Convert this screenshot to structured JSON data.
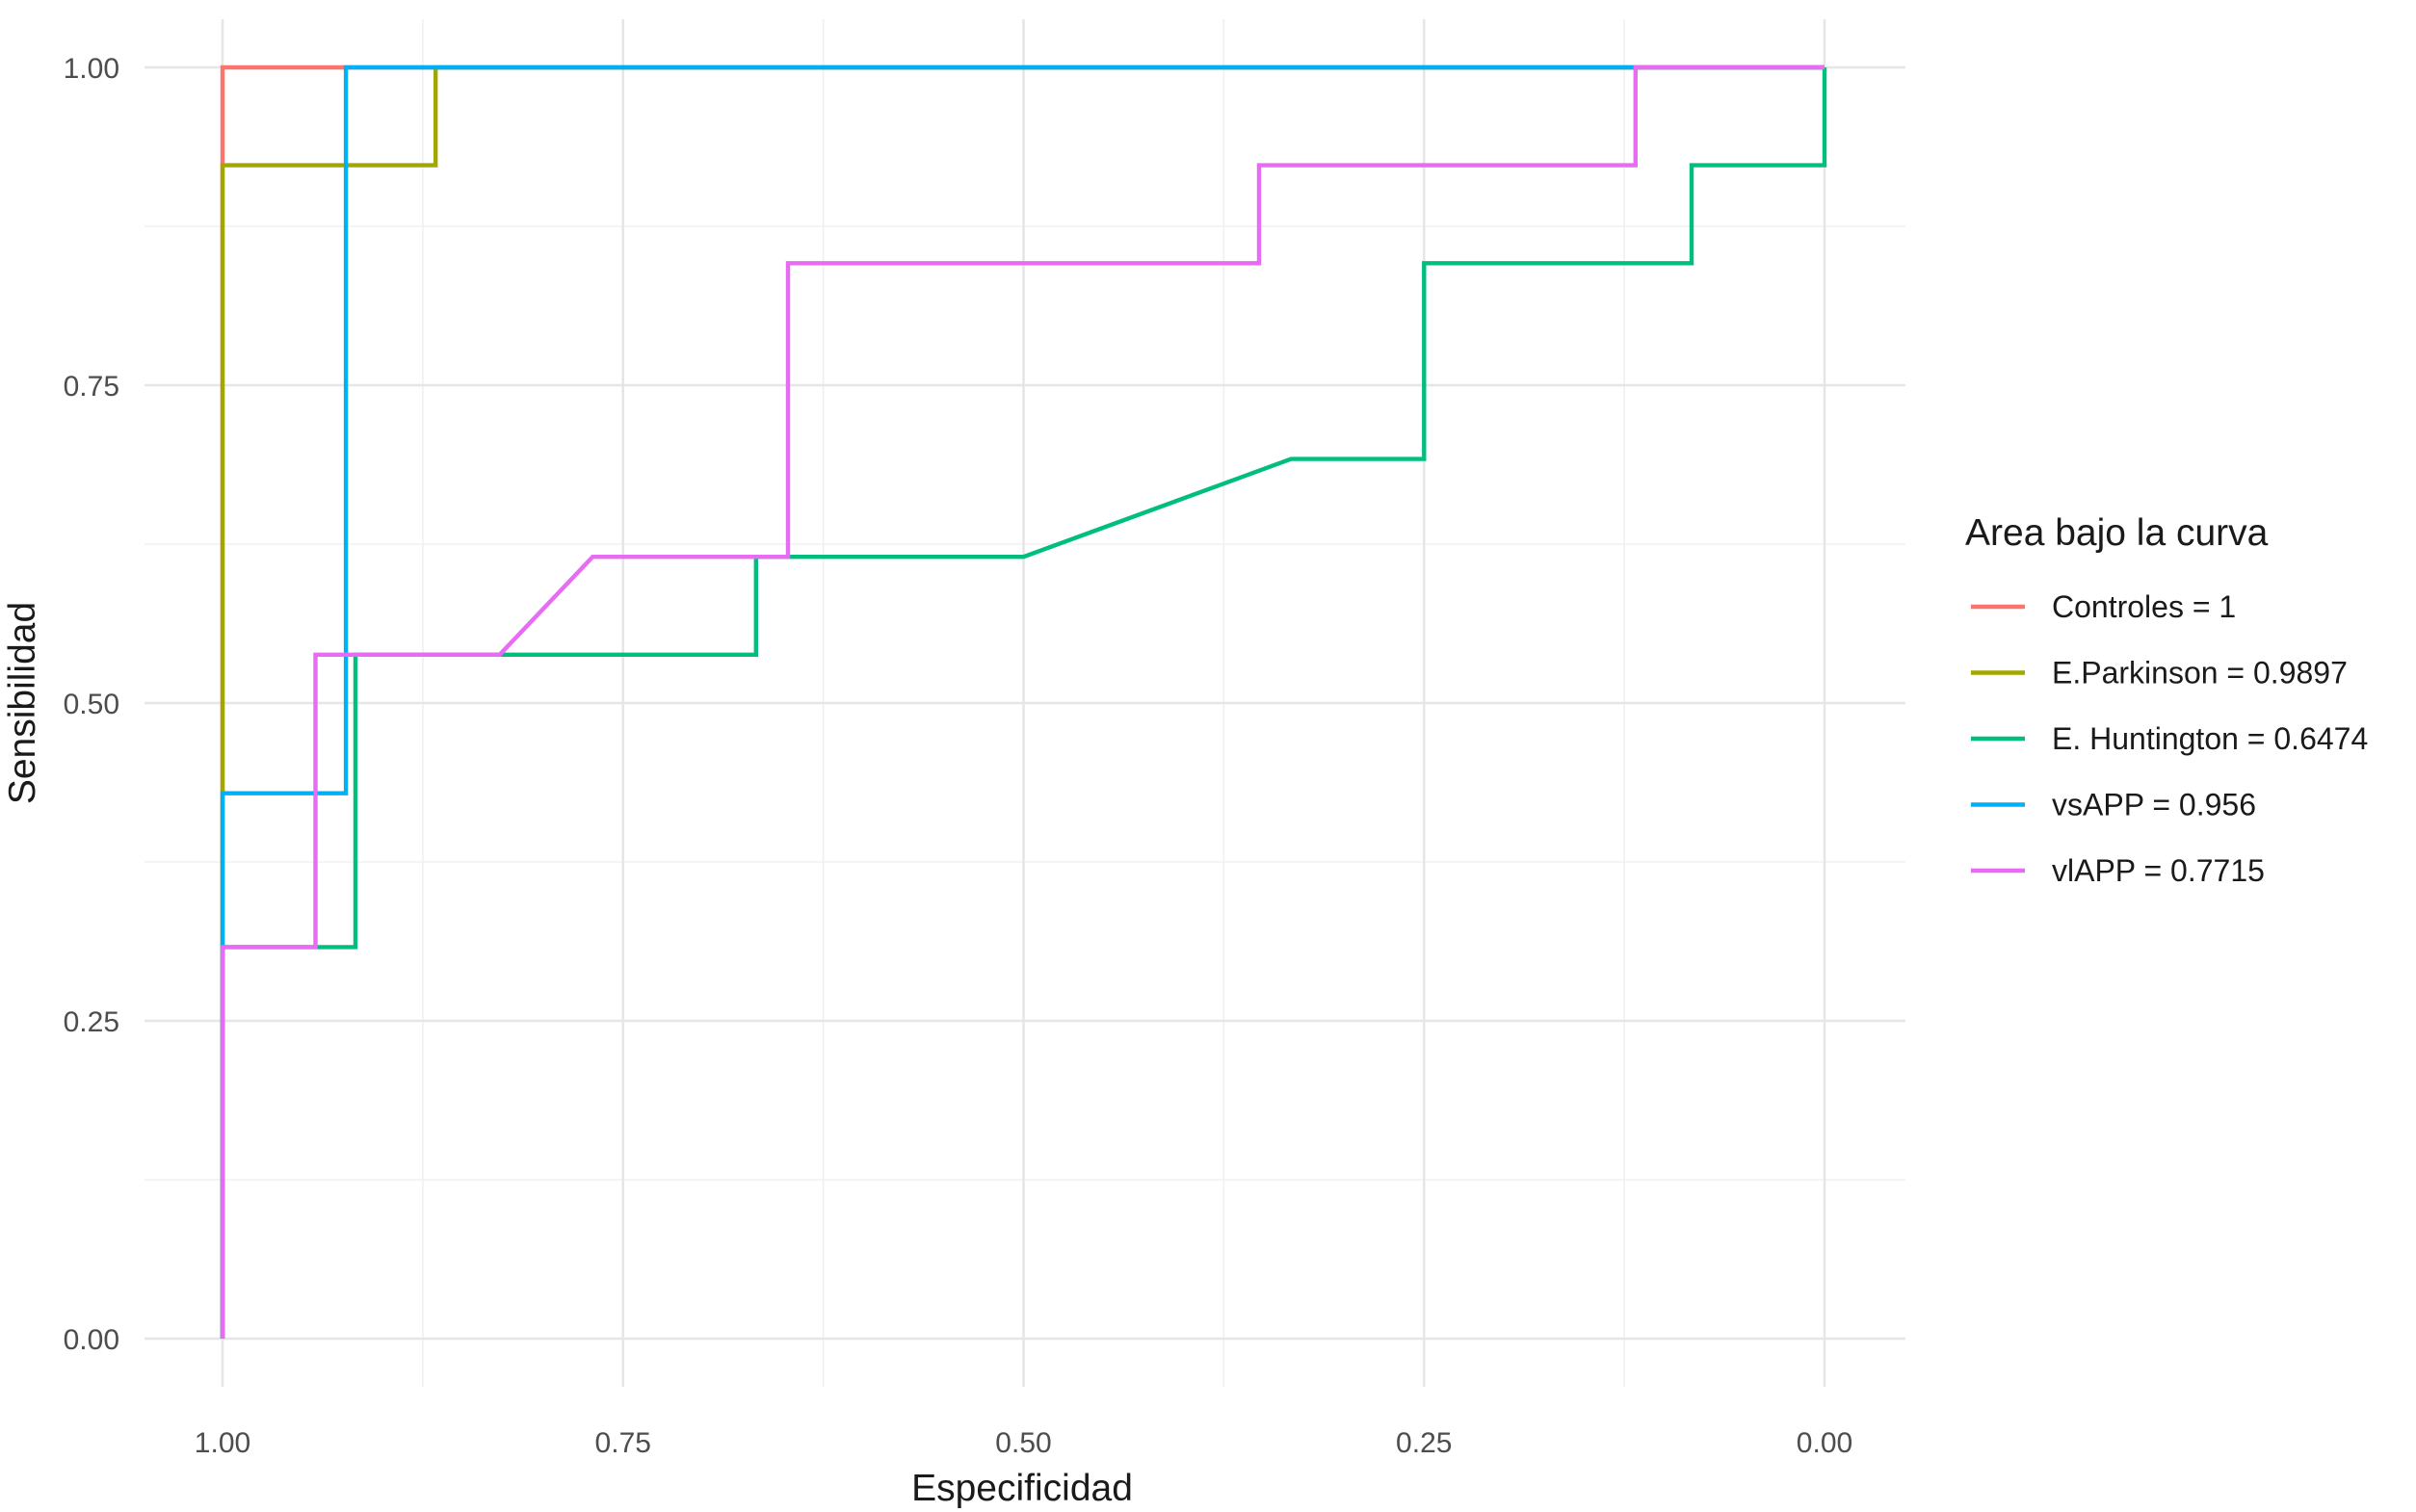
{
  "chart_data": {
    "type": "line",
    "title": "",
    "xlabel": "Especificidad",
    "ylabel": "Sensibilidad",
    "x_reversed": true,
    "xlim": [
      1.0,
      0.0
    ],
    "ylim": [
      0.0,
      1.0
    ],
    "x_ticks": [
      "1.00",
      "0.75",
      "0.50",
      "0.25",
      "0.00"
    ],
    "x_tick_values": [
      1.0,
      0.75,
      0.5,
      0.25,
      0.0
    ],
    "y_ticks": [
      "0.00",
      "0.25",
      "0.50",
      "0.75",
      "1.00"
    ],
    "y_tick_values": [
      0.0,
      0.25,
      0.5,
      0.75,
      1.0
    ],
    "grid": true,
    "legend_position": "right",
    "legend_title": "Area bajo la curva",
    "series": [
      {
        "name": "Controles = 1",
        "color": "#F8766D",
        "points": [
          [
            1.0,
            0.0
          ],
          [
            1.0,
            1.0
          ],
          [
            0.923,
            1.0
          ],
          [
            0.0,
            1.0
          ]
        ]
      },
      {
        "name": "E.Parkinson = 0.9897",
        "color": "#A3A500",
        "points": [
          [
            1.0,
            0.0
          ],
          [
            1.0,
            0.923
          ],
          [
            0.867,
            0.923
          ],
          [
            0.867,
            1.0
          ],
          [
            0.0,
            1.0
          ]
        ]
      },
      {
        "name": "E. Huntington = 0.6474",
        "color": "#00BF7D",
        "points": [
          [
            1.0,
            0.0
          ],
          [
            1.0,
            0.308
          ],
          [
            0.917,
            0.308
          ],
          [
            0.917,
            0.538
          ],
          [
            0.667,
            0.538
          ],
          [
            0.667,
            0.615
          ],
          [
            0.5,
            0.615
          ],
          [
            0.333,
            0.692
          ],
          [
            0.25,
            0.692
          ],
          [
            0.25,
            0.846
          ],
          [
            0.083,
            0.846
          ],
          [
            0.083,
            0.923
          ],
          [
            0.0,
            0.923
          ],
          [
            0.0,
            1.0
          ]
        ]
      },
      {
        "name": "vsAPP = 0.956",
        "color": "#00B0F6",
        "points": [
          [
            1.0,
            0.0
          ],
          [
            1.0,
            0.308
          ],
          [
            1.0,
            0.429
          ],
          [
            0.923,
            0.429
          ],
          [
            0.923,
            1.0
          ],
          [
            0.115,
            1.0
          ],
          [
            0.0,
            1.0
          ]
        ]
      },
      {
        "name": "vlAPP = 0.7715",
        "color": "#E76BF3",
        "points": [
          [
            1.0,
            0.0
          ],
          [
            1.0,
            0.308
          ],
          [
            0.942,
            0.308
          ],
          [
            0.942,
            0.538
          ],
          [
            0.827,
            0.538
          ],
          [
            0.769,
            0.615
          ],
          [
            0.647,
            0.615
          ],
          [
            0.647,
            0.846
          ],
          [
            0.353,
            0.846
          ],
          [
            0.353,
            0.923
          ],
          [
            0.118,
            0.923
          ],
          [
            0.118,
            1.0
          ],
          [
            0.0,
            1.0
          ]
        ]
      }
    ]
  }
}
